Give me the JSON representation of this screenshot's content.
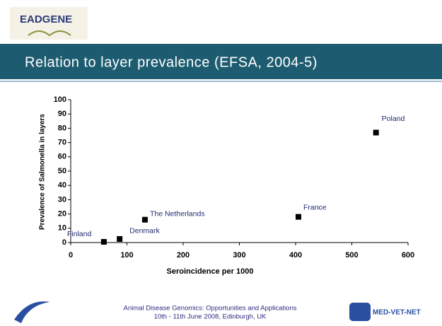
{
  "header": {
    "logo": "EADGENE",
    "title": "Relation to layer prevalence (EFSA, 2004-5)"
  },
  "chart_data": {
    "type": "scatter",
    "xlabel": "Seroincidence per 1000",
    "ylabel": "Prevalence of Salmonella in layers",
    "series": [
      {
        "color": "#000000",
        "x": [
          59,
          87,
          132,
          405,
          543
        ],
        "values": [
          0.5,
          2.5,
          16,
          18,
          77
        ],
        "point_labels": [
          "Finland",
          "Denmark",
          "The Netherlands",
          "France",
          "Poland"
        ]
      }
    ],
    "xlim": [
      0,
      600
    ],
    "xticks": [
      0,
      100,
      200,
      300,
      400,
      500,
      600
    ],
    "ylim": [
      0,
      100
    ],
    "yticks": [
      0,
      10,
      20,
      30,
      40,
      50,
      60,
      70,
      80,
      90,
      100
    ],
    "grid": false
  },
  "footer": {
    "lines": [
      "Animal Disease Genomics: Opportunities and Applications",
      "10th - 11th June 2008, Edinburgh, UK"
    ],
    "right_logo": "MED-VET-NET"
  }
}
